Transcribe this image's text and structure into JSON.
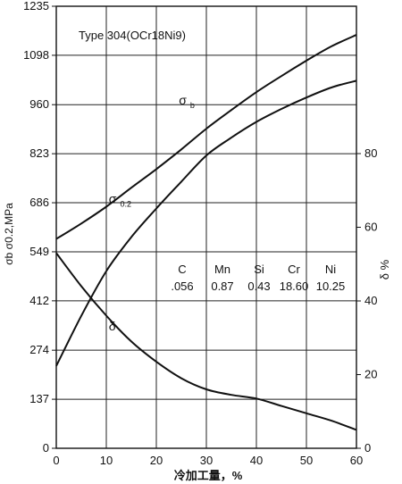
{
  "chart_data": {
    "type": "line",
    "title": "Type 304(OCr18Ni9)",
    "xlabel": "冷加工量，%",
    "ylabel_left": "σb σ0.2,MPa",
    "ylabel_right": "δ %",
    "xlim": [
      0,
      60
    ],
    "ylim_left": [
      0,
      1235
    ],
    "ylim_right": [
      0,
      120
    ],
    "x_ticks": [
      "0",
      "10",
      "20",
      "30",
      "40",
      "50",
      "60"
    ],
    "y_ticks_left": [
      "0",
      "137",
      "274",
      "412",
      "549",
      "686",
      "823",
      "960",
      "1098",
      "1235"
    ],
    "y_ticks_right": [
      "0",
      "20",
      "40",
      "60",
      "80"
    ],
    "grid": true,
    "series": [
      {
        "name": "σb",
        "symbol": "σ",
        "subscript": "b",
        "axis": "left",
        "x": [
          0,
          5,
          10,
          15,
          20,
          25,
          30,
          35,
          40,
          45,
          50,
          55,
          60
        ],
        "y": [
          585,
          628,
          675,
          728,
          780,
          835,
          893,
          945,
          995,
          1040,
          1083,
          1123,
          1155
        ]
      },
      {
        "name": "σ0.2",
        "symbol": "σ",
        "subscript": "0.2",
        "axis": "left",
        "x": [
          0,
          5,
          10,
          15,
          20,
          25,
          30,
          35,
          40,
          45,
          50,
          55,
          60
        ],
        "y": [
          230,
          370,
          495,
          590,
          670,
          745,
          818,
          868,
          912,
          948,
          980,
          1008,
          1027
        ]
      },
      {
        "name": "δ",
        "symbol": "δ",
        "subscript": "",
        "axis": "right",
        "x": [
          0,
          5,
          10,
          15,
          20,
          25,
          30,
          35,
          40,
          45,
          50,
          55,
          60
        ],
        "y": [
          53,
          44,
          36,
          29,
          23.5,
          19,
          16,
          14.5,
          13.5,
          11.5,
          9.5,
          7.5,
          5
        ]
      }
    ],
    "composition": {
      "elements": [
        "C",
        "Mn",
        "Si",
        "Cr",
        "Ni"
      ],
      "values": [
        ".056",
        "0.87",
        "0.43",
        "18.60",
        "10.25"
      ]
    }
  }
}
